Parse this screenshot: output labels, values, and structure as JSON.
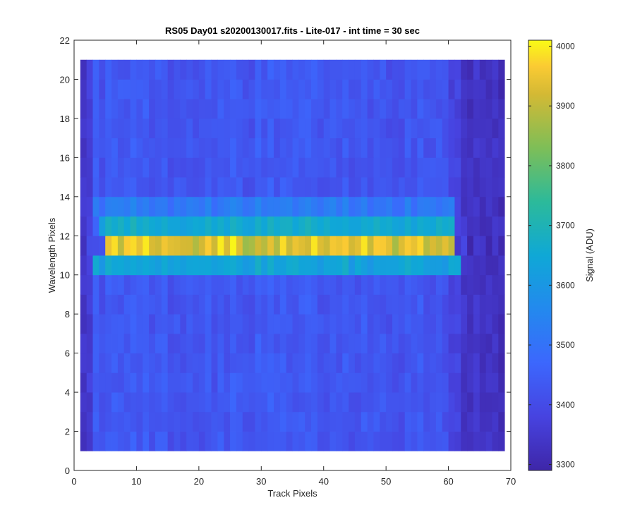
{
  "chart_data": {
    "type": "heatmap",
    "title": "RS05 Day01  s20200130017.fits - Lite-017 - int time = 30 sec",
    "xlabel": "Track Pixels",
    "ylabel": "Wavelength Pixels",
    "xlim": [
      0,
      70
    ],
    "ylim": [
      0,
      22
    ],
    "xticks": [
      "0",
      "10",
      "20",
      "30",
      "40",
      "50",
      "60",
      "70"
    ],
    "yticks": [
      "0",
      "2",
      "4",
      "6",
      "8",
      "10",
      "12",
      "14",
      "16",
      "18",
      "20",
      "22"
    ],
    "x_range": [
      1,
      69
    ],
    "y_range": [
      1,
      21
    ],
    "colormap": "parula",
    "colorbar": {
      "label": "Signal (ADU)",
      "range": [
        3290,
        4010
      ],
      "ticks": [
        "3300",
        "3400",
        "3500",
        "3600",
        "3700",
        "3800",
        "3900",
        "4000"
      ]
    },
    "bands": [
      {
        "rows": [
          1,
          10
        ],
        "cols": [
          1,
          69
        ],
        "approx_value": 3430
      },
      {
        "rows": [
          10,
          11
        ],
        "cols": [
          3,
          62
        ],
        "approx_value": 3640
      },
      {
        "rows": [
          11,
          12
        ],
        "cols": [
          5,
          61
        ],
        "approx_value": 3930
      },
      {
        "rows": [
          12,
          13
        ],
        "cols": [
          4,
          61
        ],
        "approx_value": 3660
      },
      {
        "rows": [
          13,
          14
        ],
        "cols": [
          3,
          61
        ],
        "approx_value": 3520
      },
      {
        "rows": [
          14,
          21
        ],
        "cols": [
          1,
          69
        ],
        "approx_value": 3430
      }
    ],
    "edge_columns": {
      "left_cols": [
        1,
        3
      ],
      "right_cols": [
        61,
        69
      ],
      "approx_value": 3330
    }
  }
}
